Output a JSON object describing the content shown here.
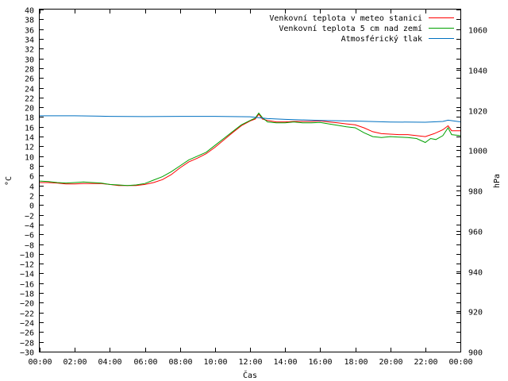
{
  "chart_data": {
    "type": "line",
    "xlabel": "Čas",
    "ylabel": "°C",
    "y2label": "hPa",
    "x_ticks": [
      "00:00",
      "02:00",
      "04:00",
      "06:00",
      "08:00",
      "10:00",
      "12:00",
      "14:00",
      "16:00",
      "18:00",
      "20:00",
      "22:00",
      "00:00"
    ],
    "xlim": [
      0,
      24
    ],
    "ylim": [
      -30,
      40
    ],
    "y_ticks": [
      40,
      38,
      36,
      34,
      32,
      30,
      28,
      26,
      24,
      22,
      20,
      18,
      16,
      14,
      12,
      10,
      8,
      6,
      4,
      2,
      0,
      -2,
      -4,
      -6,
      -8,
      -10,
      -12,
      -14,
      -16,
      -18,
      -20,
      -22,
      -24,
      -26,
      -28,
      -30
    ],
    "y2lim": [
      900,
      1070
    ],
    "y2_ticks": [
      1060,
      1040,
      1020,
      1000,
      980,
      960,
      940,
      920,
      900
    ],
    "legend_position": "top-right",
    "series": [
      {
        "name": "Venkovní teplota v meteo stanici",
        "color": "#ff0000",
        "axis": "left",
        "x": [
          0,
          0.5,
          1,
          1.5,
          2,
          2.5,
          3,
          3.5,
          4,
          4.5,
          5,
          5.5,
          6,
          6.5,
          7,
          7.5,
          8,
          8.5,
          9,
          9.5,
          10,
          10.5,
          11,
          11.5,
          12,
          12.3,
          12.5,
          12.7,
          13,
          13.5,
          14,
          14.5,
          15,
          15.5,
          16,
          16.5,
          17,
          17.5,
          18,
          18.5,
          19,
          19.5,
          20,
          20.5,
          21,
          21.5,
          22,
          22.5,
          23,
          23.3,
          23.5,
          24
        ],
        "values": [
          4.6,
          4.6,
          4.5,
          4.3,
          4.3,
          4.4,
          4.4,
          4.4,
          4.2,
          4.0,
          4.0,
          4.0,
          4.2,
          4.6,
          5.2,
          6.2,
          7.6,
          8.8,
          9.6,
          10.5,
          11.8,
          13.3,
          14.8,
          16.2,
          17.2,
          17.6,
          18.6,
          17.6,
          17.3,
          17.0,
          17.0,
          17.1,
          17.1,
          17.1,
          17.2,
          17.0,
          16.8,
          16.6,
          16.4,
          15.8,
          15.0,
          14.6,
          14.5,
          14.4,
          14.4,
          14.2,
          14.0,
          14.6,
          15.4,
          16.2,
          15.2,
          15.2
        ]
      },
      {
        "name": "Venkovní teplota 5 cm nad zemí",
        "color": "#00a000",
        "axis": "left",
        "x": [
          0,
          0.5,
          1,
          1.5,
          2,
          2.5,
          3,
          3.5,
          4,
          4.5,
          5,
          5.5,
          6,
          6.5,
          7,
          7.5,
          8,
          8.5,
          9,
          9.5,
          10,
          10.5,
          11,
          11.5,
          12,
          12.3,
          12.5,
          12.7,
          13,
          13.5,
          14,
          14.5,
          15,
          15.5,
          16,
          16.5,
          17,
          17.5,
          18,
          18.5,
          19,
          19.5,
          20,
          20.5,
          21,
          21.5,
          22,
          22.3,
          22.6,
          23,
          23.3,
          23.5,
          24
        ],
        "values": [
          4.9,
          4.8,
          4.6,
          4.5,
          4.6,
          4.7,
          4.6,
          4.5,
          4.2,
          4.1,
          4.0,
          4.1,
          4.4,
          5.1,
          5.8,
          6.8,
          8.0,
          9.2,
          10.0,
          10.8,
          12.2,
          13.6,
          15.0,
          16.4,
          17.3,
          17.8,
          18.8,
          17.9,
          17.0,
          16.8,
          16.8,
          17.0,
          16.8,
          16.8,
          16.9,
          16.6,
          16.3,
          16.0,
          15.8,
          14.8,
          14.0,
          13.8,
          14.0,
          13.9,
          13.8,
          13.6,
          12.8,
          13.6,
          13.4,
          14.2,
          15.8,
          14.4,
          14.2
        ]
      },
      {
        "name": "Atmosférický tlak",
        "color": "#0070c0",
        "axis": "right",
        "x": [
          0,
          2,
          4,
          6,
          8,
          10,
          12,
          13,
          14,
          16,
          18,
          20,
          22,
          23,
          23.3,
          24
        ],
        "values": [
          1017.2,
          1017.2,
          1016.9,
          1016.8,
          1016.9,
          1016.9,
          1016.7,
          1015.8,
          1015.4,
          1014.9,
          1014.6,
          1014.1,
          1014.0,
          1014.4,
          1015.0,
          1014.2
        ]
      }
    ]
  }
}
